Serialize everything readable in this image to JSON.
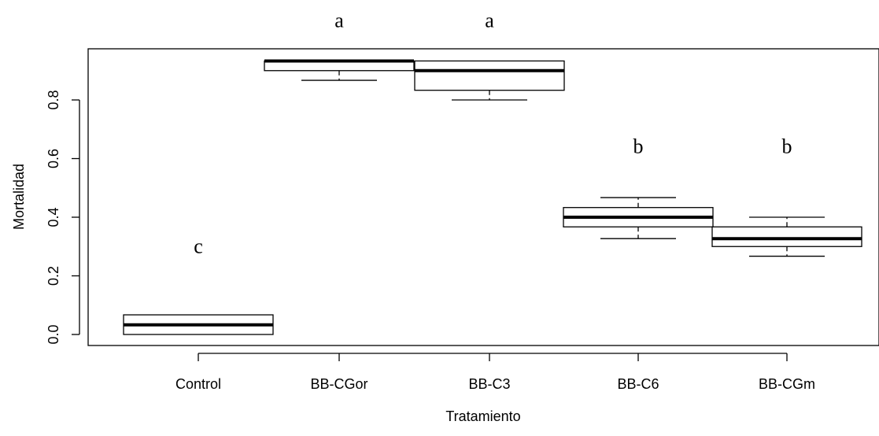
{
  "chart_data": {
    "type": "boxplot",
    "title": "",
    "xlabel": "Tratamiento",
    "ylabel": "Mortalidad",
    "ylim": [
      -0.04,
      0.97
    ],
    "yticks": [
      "0.0",
      "0.2",
      "0.4",
      "0.6",
      "0.8"
    ],
    "ytick_values": [
      0.0,
      0.2,
      0.4,
      0.6,
      0.8
    ],
    "categories": [
      "Control",
      "BB-CGor",
      "BB-C3",
      "BB-C6",
      "BB-CGm"
    ],
    "boxes": [
      {
        "category": "Control",
        "min": 0.0,
        "q1": 0.0,
        "median": 0.033,
        "q3": 0.067,
        "max": 0.067,
        "letter": "c",
        "letter_y": 0.3
      },
      {
        "category": "BB-CGor",
        "min": 0.867,
        "q1": 0.9,
        "median": 0.933,
        "q3": 0.933,
        "max": 0.933,
        "letter": "a",
        "letter_y": 1.07
      },
      {
        "category": "BB-C3",
        "min": 0.8,
        "q1": 0.833,
        "median": 0.9,
        "q3": 0.933,
        "max": 0.933,
        "letter": "a",
        "letter_y": 1.07
      },
      {
        "category": "BB-C6",
        "min": 0.327,
        "q1": 0.367,
        "median": 0.4,
        "q3": 0.433,
        "max": 0.467,
        "letter": "b",
        "letter_y": 0.64
      },
      {
        "category": "BB-CGm",
        "min": 0.267,
        "q1": 0.3,
        "median": 0.327,
        "q3": 0.367,
        "max": 0.4,
        "letter": "b",
        "letter_y": 0.64
      }
    ]
  }
}
